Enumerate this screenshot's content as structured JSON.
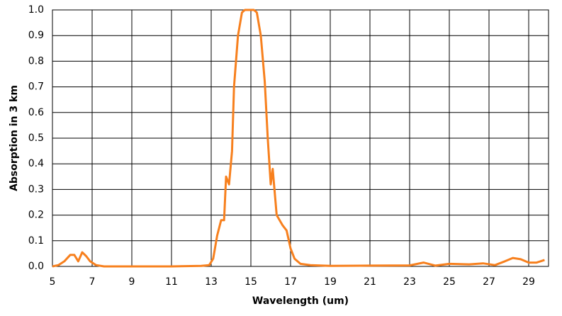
{
  "chart_data": {
    "type": "line",
    "x_label": "Wavelength (um)",
    "y_label": "Absorption in 3 km",
    "x": [
      5.0,
      5.3,
      5.6,
      5.9,
      6.1,
      6.3,
      6.5,
      6.7,
      6.9,
      7.2,
      7.6,
      9,
      11,
      12.5,
      12.9,
      13.1,
      13.3,
      13.5,
      13.65,
      13.75,
      13.9,
      14.05,
      14.15,
      14.35,
      14.55,
      14.7,
      15.15,
      15.3,
      15.5,
      15.7,
      15.85,
      16.0,
      16.1,
      16.3,
      16.6,
      16.8,
      17.0,
      17.2,
      17.5,
      18,
      19,
      21,
      23,
      23.7,
      24.3,
      25.0,
      26,
      26.7,
      27.3,
      27.8,
      28.2,
      28.6,
      29,
      29.4,
      29.8
    ],
    "series": [
      {
        "name": "Absorption",
        "color": "#f7801e",
        "values": [
          0.0,
          0.005,
          0.02,
          0.045,
          0.045,
          0.02,
          0.055,
          0.04,
          0.02,
          0.005,
          0,
          0,
          0,
          0.002,
          0.005,
          0.03,
          0.12,
          0.18,
          0.18,
          0.35,
          0.32,
          0.45,
          0.7,
          0.9,
          0.99,
          1.0,
          1.0,
          0.99,
          0.9,
          0.72,
          0.5,
          0.32,
          0.38,
          0.2,
          0.16,
          0.14,
          0.07,
          0.03,
          0.01,
          0.005,
          0.002,
          0.003,
          0.004,
          0.015,
          0.003,
          0.01,
          0.008,
          0.012,
          0.005,
          0.02,
          0.033,
          0.028,
          0.015,
          0.015,
          0.025
        ]
      }
    ],
    "xlim": [
      5,
      30
    ],
    "xticks": [
      5,
      7,
      9,
      11,
      13,
      15,
      17,
      19,
      21,
      23,
      25,
      27,
      29
    ],
    "ylim": [
      0,
      1
    ],
    "yticks": [
      {
        "value": 0,
        "label": "0.0"
      },
      0.1,
      0.2,
      0.3,
      0.4,
      0.5,
      0.6,
      0.7,
      0.8,
      0.9,
      {
        "value": 1,
        "label": "1.0"
      }
    ],
    "grid": true
  }
}
